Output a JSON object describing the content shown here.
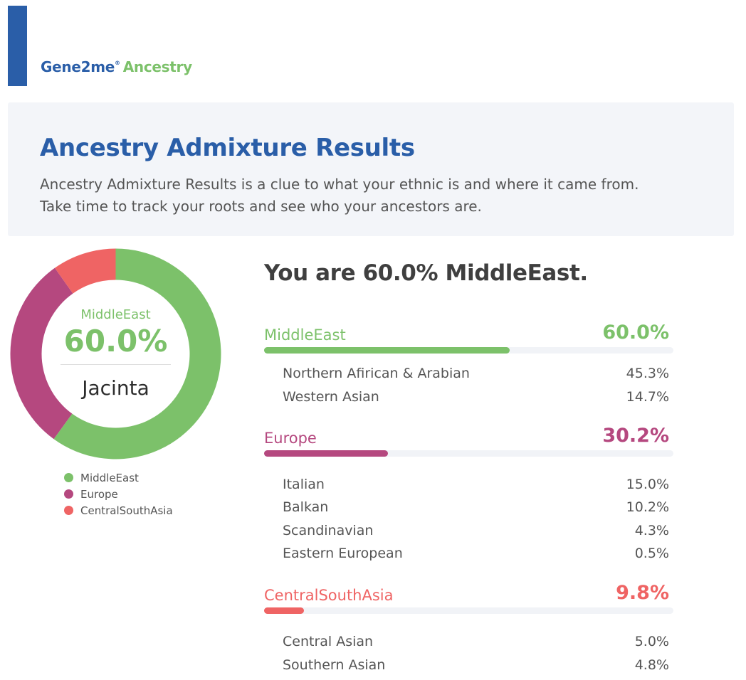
{
  "brand": {
    "name": "Gene2me",
    "reg": "®",
    "product": "Ancestry"
  },
  "intro": {
    "title": "Ancestry Admixture Results",
    "line1": "Ancestry Admixture Results is a clue to what your ethnic is and where it came from.",
    "line2": "Take time to track your roots and see who your ancestors are."
  },
  "donut": {
    "top_label": "MiddleEast",
    "top_value": "60.0%",
    "person": "Jacinta"
  },
  "legend": [
    {
      "label": "MiddleEast",
      "color": "#7cc16a"
    },
    {
      "label": "Europe",
      "color": "#b5487f"
    },
    {
      "label": "CentralSouthAsia",
      "color": "#ef6464"
    }
  ],
  "headline": "You are 60.0% MiddleEast.",
  "chart_data": {
    "type": "pie",
    "categories": [
      "MiddleEast",
      "Europe",
      "CentralSouthAsia"
    ],
    "values": [
      60.0,
      30.2,
      9.8
    ],
    "colors": [
      "#7cc16a",
      "#b5487f",
      "#ef6464"
    ]
  },
  "regions": [
    {
      "name": "MiddleEast",
      "pct": "60.0%",
      "fraction": 0.6,
      "color": "#7cc16a",
      "subs": [
        {
          "name": "Northern Afirican & Arabian",
          "pct": "45.3%"
        },
        {
          "name": "Western Asian",
          "pct": "14.7%"
        }
      ]
    },
    {
      "name": "Europe",
      "pct": "30.2%",
      "fraction": 0.302,
      "color": "#b5487f",
      "subs": [
        {
          "name": "Italian",
          "pct": "15.0%"
        },
        {
          "name": "Balkan",
          "pct": "10.2%"
        },
        {
          "name": "Scandinavian",
          "pct": "4.3%"
        },
        {
          "name": "Eastern European",
          "pct": "0.5%"
        }
      ]
    },
    {
      "name": "CentralSouthAsia",
      "pct": "9.8%",
      "fraction": 0.098,
      "color": "#ef6464",
      "subs": [
        {
          "name": "Central Asian",
          "pct": "5.0%"
        },
        {
          "name": "Southern Asian",
          "pct": "4.8%"
        }
      ]
    }
  ]
}
